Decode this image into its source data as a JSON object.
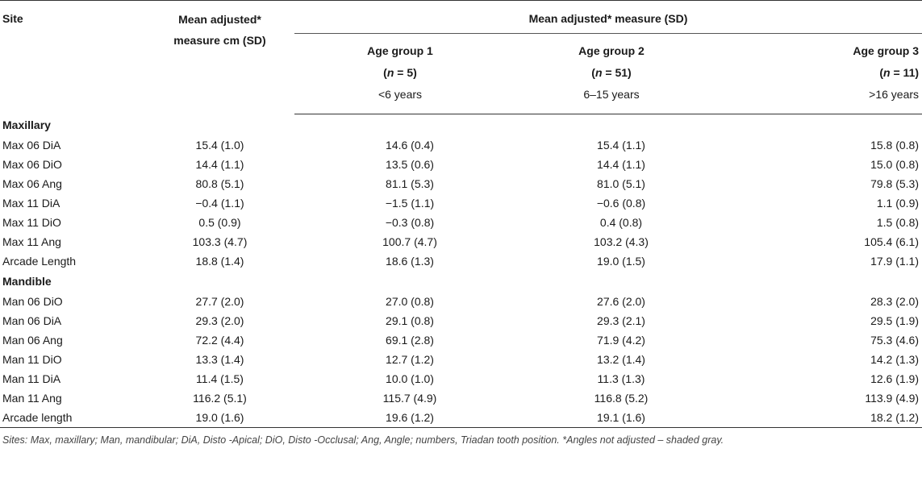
{
  "header": {
    "site": "Site",
    "mean_line1": "Mean adjusted*",
    "mean_line2": "measure cm (SD)",
    "span": "Mean adjusted* measure (SD)",
    "groups": [
      {
        "label": "Age group 1",
        "n_prefix": "(",
        "n_var": "n",
        "n_rest": " = 5)",
        "range": "<6 years"
      },
      {
        "label": "Age group 2",
        "n_prefix": "(",
        "n_var": "n",
        "n_rest": " = 51)",
        "range": "6–15 years"
      },
      {
        "label": "Age group 3",
        "n_prefix": "(",
        "n_var": "n",
        "n_rest": " = 11)",
        "range": ">16 years"
      }
    ]
  },
  "sections": [
    {
      "title": "Maxillary",
      "rows": [
        {
          "site": "Max 06 DiA",
          "mean": "15.4 (1.0)",
          "g1": "14.6 (0.4)",
          "g2": "15.4 (1.1)",
          "g3": "15.8 (0.8)"
        },
        {
          "site": "Max 06 DiO",
          "mean": "14.4 (1.1)",
          "g1": "13.5 (0.6)",
          "g2": "14.4 (1.1)",
          "g3": "15.0 (0.8)"
        },
        {
          "site": "Max 06 Ang",
          "mean": "80.8 (5.1)",
          "g1": "81.1 (5.3)",
          "g2": "81.0 (5.1)",
          "g3": "79.8 (5.3)"
        },
        {
          "site": "Max 11 DiA",
          "mean": "−0.4 (1.1)",
          "g1": "−1.5 (1.1)",
          "g2": "−0.6 (0.8)",
          "g3": "1.1 (0.9)"
        },
        {
          "site": "Max 11 DiO",
          "mean": "0.5 (0.9)",
          "g1": "−0.3 (0.8)",
          "g2": "0.4 (0.8)",
          "g3": "1.5 (0.8)"
        },
        {
          "site": "Max 11 Ang",
          "mean": "103.3 (4.7)",
          "g1": "100.7 (4.7)",
          "g2": "103.2 (4.3)",
          "g3": "105.4 (6.1)"
        },
        {
          "site": "Arcade Length",
          "mean": "18.8 (1.4)",
          "g1": "18.6 (1.3)",
          "g2": "19.0 (1.5)",
          "g3": "17.9 (1.1)"
        }
      ]
    },
    {
      "title": "Mandible",
      "rows": [
        {
          "site": "Man 06 DiO",
          "mean": "27.7 (2.0)",
          "g1": "27.0 (0.8)",
          "g2": "27.6 (2.0)",
          "g3": "28.3 (2.0)"
        },
        {
          "site": "Man 06 DiA",
          "mean": "29.3 (2.0)",
          "g1": "29.1 (0.8)",
          "g2": "29.3 (2.1)",
          "g3": "29.5 (1.9)"
        },
        {
          "site": "Man 06 Ang",
          "mean": "72.2 (4.4)",
          "g1": "69.1 (2.8)",
          "g2": "71.9 (4.2)",
          "g3": "75.3 (4.6)"
        },
        {
          "site": "Man 11 DiO",
          "mean": "13.3 (1.4)",
          "g1": "12.7 (1.2)",
          "g2": "13.2 (1.4)",
          "g3": "14.2 (1.3)"
        },
        {
          "site": "Man 11 DiA",
          "mean": "11.4 (1.5)",
          "g1": "10.0 (1.0)",
          "g2": "11.3 (1.3)",
          "g3": "12.6 (1.9)"
        },
        {
          "site": "Man 11 Ang",
          "mean": "116.2 (5.1)",
          "g1": "115.7 (4.9)",
          "g2": "116.8 (5.2)",
          "g3": "113.9 (4.9)"
        },
        {
          "site": "Arcade length",
          "mean": "19.0 (1.6)",
          "g1": "19.6 (1.2)",
          "g2": "19.1 (1.6)",
          "g3": "18.2 (1.2)"
        }
      ]
    }
  ],
  "footnote": "Sites: Max, maxillary; Man, mandibular; DiA, Disto -Apical; DiO, Disto -Occlusal; Ang, Angle; numbers, Triadan tooth position. *Angles not adjusted – shaded gray."
}
